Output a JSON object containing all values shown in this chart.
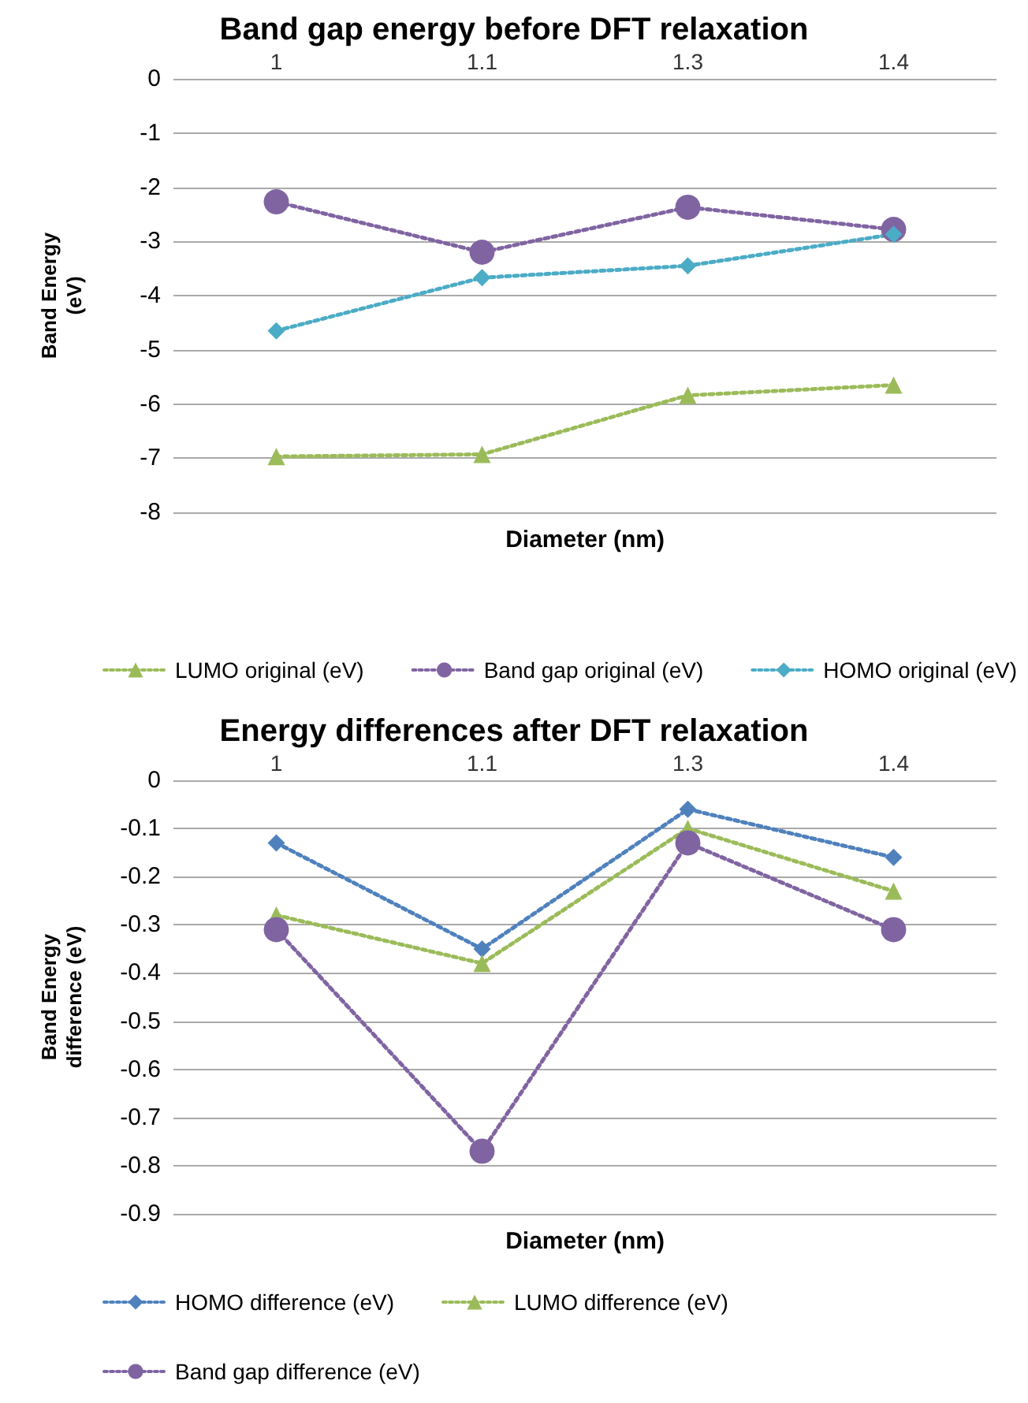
{
  "chart_data": [
    {
      "type": "line",
      "title": "Band gap energy before DFT relaxation",
      "xlabel": "Diameter (nm)",
      "ylabel": "Band Energy\n(eV)",
      "categories": [
        "1",
        "1.1",
        "1.3",
        "1.4"
      ],
      "ylim": [
        -8,
        0
      ],
      "yticks": [
        -8,
        -7,
        -6,
        -5,
        -4,
        -3,
        -2,
        -1,
        0
      ],
      "grid": "y",
      "legend": "bottom",
      "line_style": "dotted",
      "series": [
        {
          "name": "LUMO original (eV)",
          "color": "#9bbb59",
          "marker": "triangle",
          "values": [
            -6.97,
            -6.93,
            -5.84,
            -5.65
          ]
        },
        {
          "name": "Band gap original (eV)",
          "color": "#8064a2",
          "marker": "circle",
          "values": [
            -2.27,
            -3.2,
            -2.37,
            -2.78
          ]
        },
        {
          "name": "HOMO original (eV)",
          "color": "#4bacc6",
          "marker": "diamond",
          "values": [
            -4.65,
            -3.67,
            -3.45,
            -2.87
          ]
        }
      ]
    },
    {
      "type": "line",
      "title": "Energy differences after DFT relaxation",
      "xlabel": "Diameter (nm)",
      "ylabel": "Band Energy\ndifference (eV)",
      "categories": [
        "1",
        "1.1",
        "1.3",
        "1.4"
      ],
      "ylim": [
        -0.9,
        0
      ],
      "yticks": [
        -0.9,
        -0.8,
        -0.7,
        -0.6,
        -0.5,
        -0.4,
        -0.3,
        -0.2,
        -0.1,
        0
      ],
      "grid": "y",
      "legend": "bottom",
      "line_style": "dotted",
      "series": [
        {
          "name": "HOMO difference (eV)",
          "color": "#4f81bd",
          "marker": "diamond",
          "values": [
            -0.13,
            -0.35,
            -0.06,
            -0.16
          ]
        },
        {
          "name": "LUMO difference (eV)",
          "color": "#9bbb59",
          "marker": "triangle",
          "values": [
            -0.28,
            -0.38,
            -0.1,
            -0.23
          ]
        },
        {
          "name": "Band gap difference (eV)",
          "color": "#8064a2",
          "marker": "circle",
          "values": [
            -0.31,
            -0.77,
            -0.13,
            -0.31
          ]
        }
      ]
    }
  ]
}
